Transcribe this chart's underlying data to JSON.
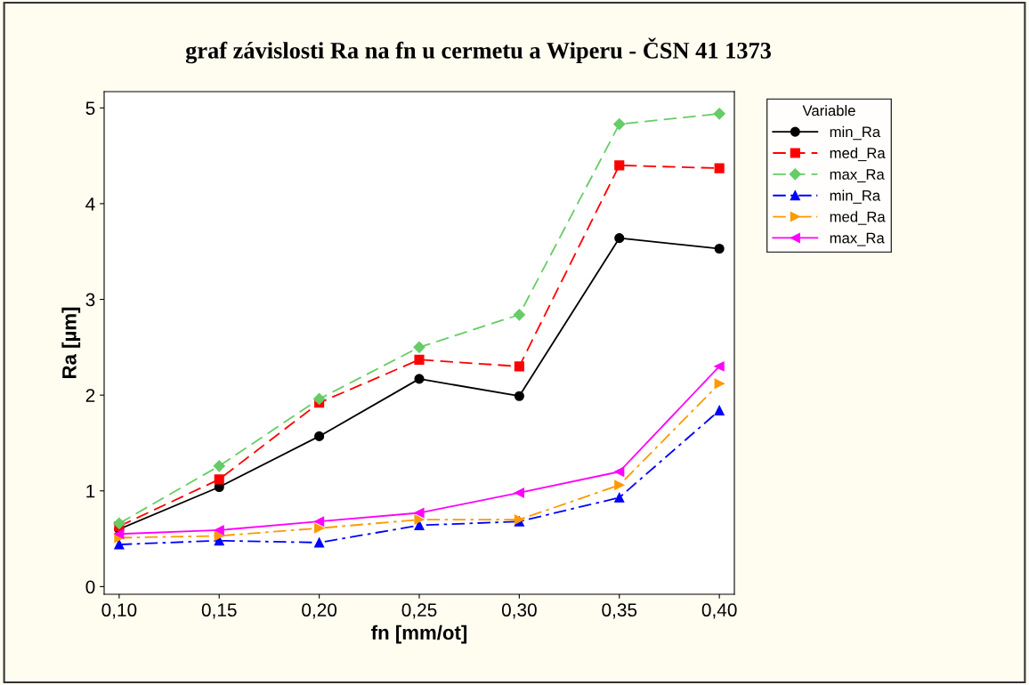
{
  "chart_data": {
    "type": "line",
    "title": "graf závislosti Ra na fn u cermetu a Wiperu - ČSN 41 1373",
    "xlabel": "fn [mm/ot]",
    "ylabel": "Ra [µm]",
    "legend_title": "Variable",
    "legend": "right",
    "x": [
      0.1,
      0.15,
      0.2,
      0.25,
      0.3,
      0.35,
      0.4
    ],
    "xlim": [
      0.0925,
      0.4075
    ],
    "xticks": [
      {
        "value": 0.1,
        "label": "0,10"
      },
      {
        "value": 0.15,
        "label": "0,15"
      },
      {
        "value": 0.2,
        "label": "0,20"
      },
      {
        "value": 0.25,
        "label": "0,25"
      },
      {
        "value": 0.3,
        "label": "0,30"
      },
      {
        "value": 0.35,
        "label": "0,35"
      },
      {
        "value": 0.4,
        "label": "0,40"
      }
    ],
    "ylim": [
      -0.08,
      5.17
    ],
    "yticks": [
      0,
      1,
      2,
      3,
      4,
      5
    ],
    "grid": false,
    "series": [
      {
        "name": "min_Ra",
        "color": "#000000",
        "marker": "circle",
        "line_style": "solid",
        "values": [
          0.6,
          1.04,
          1.57,
          2.17,
          1.99,
          3.64,
          3.53
        ]
      },
      {
        "name": "med_Ra",
        "color": "#ff0000",
        "marker": "square",
        "line_style": "dashed",
        "values": [
          0.63,
          1.12,
          1.92,
          2.37,
          2.3,
          4.4,
          4.37
        ]
      },
      {
        "name": "max_Ra",
        "color": "#66cc66",
        "marker": "diamond",
        "line_style": "dashed",
        "values": [
          0.66,
          1.26,
          1.96,
          2.5,
          2.84,
          4.83,
          4.94
        ]
      },
      {
        "name": "min_Ra",
        "color": "#0000ff",
        "marker": "triangle",
        "line_style": "dashdot",
        "values": [
          0.44,
          0.48,
          0.46,
          0.64,
          0.68,
          0.93,
          1.84
        ]
      },
      {
        "name": "med_Ra",
        "color": "#ff9900",
        "marker": "triangle_right",
        "line_style": "dashdot",
        "values": [
          0.51,
          0.53,
          0.61,
          0.7,
          0.7,
          1.06,
          2.12
        ]
      },
      {
        "name": "max_Ra",
        "color": "#ff00ff",
        "marker": "triangle_left",
        "line_style": "solid",
        "values": [
          0.55,
          0.59,
          0.68,
          0.77,
          0.98,
          1.2,
          2.3
        ]
      }
    ]
  }
}
